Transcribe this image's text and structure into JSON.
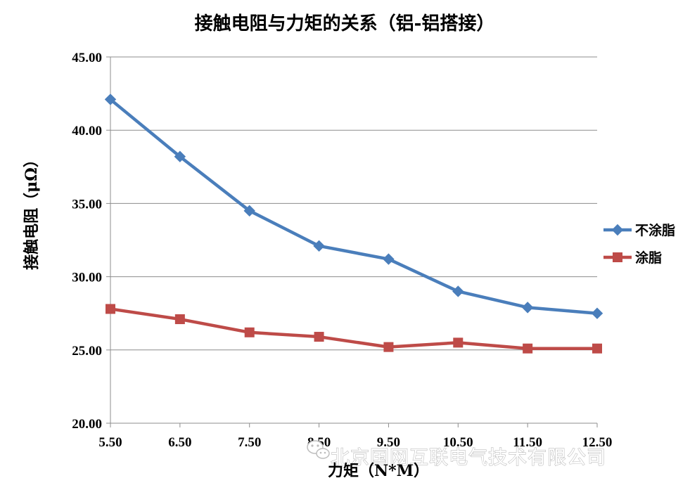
{
  "chart_data": {
    "type": "line",
    "title": "接触电阻与力矩的关系（铝-铝搭接）",
    "xlabel": "力矩（N*M）",
    "ylabel": "接触电阻（μΩ）",
    "x_tick_labels": [
      "5.50",
      "6.50",
      "7.50",
      "8.50",
      "9.50",
      "10.50",
      "11.50",
      "12.50"
    ],
    "x": [
      5.5,
      6.5,
      7.5,
      8.5,
      9.5,
      10.5,
      11.5,
      12.5
    ],
    "y_tick_labels": [
      "20.00",
      "25.00",
      "30.00",
      "35.00",
      "40.00",
      "45.00"
    ],
    "y_ticks": [
      20,
      25,
      30,
      35,
      40,
      45
    ],
    "xlim": [
      5.5,
      12.5
    ],
    "ylim": [
      20,
      45
    ],
    "grid": "horizontal",
    "legend_position": "right",
    "series": [
      {
        "name": "不涂脂",
        "color": "#4a7ebb",
        "marker": "diamond",
        "values": [
          42.1,
          38.2,
          34.5,
          32.1,
          31.2,
          29.0,
          27.9,
          27.5
        ]
      },
      {
        "name": "涂脂",
        "color": "#be4b48",
        "marker": "square",
        "values": [
          27.8,
          27.1,
          26.2,
          25.9,
          25.2,
          25.5,
          25.1,
          25.1
        ]
      }
    ]
  },
  "watermark": {
    "text": "北京国网互联电气技术有限公司",
    "icon": "wechat-icon"
  }
}
